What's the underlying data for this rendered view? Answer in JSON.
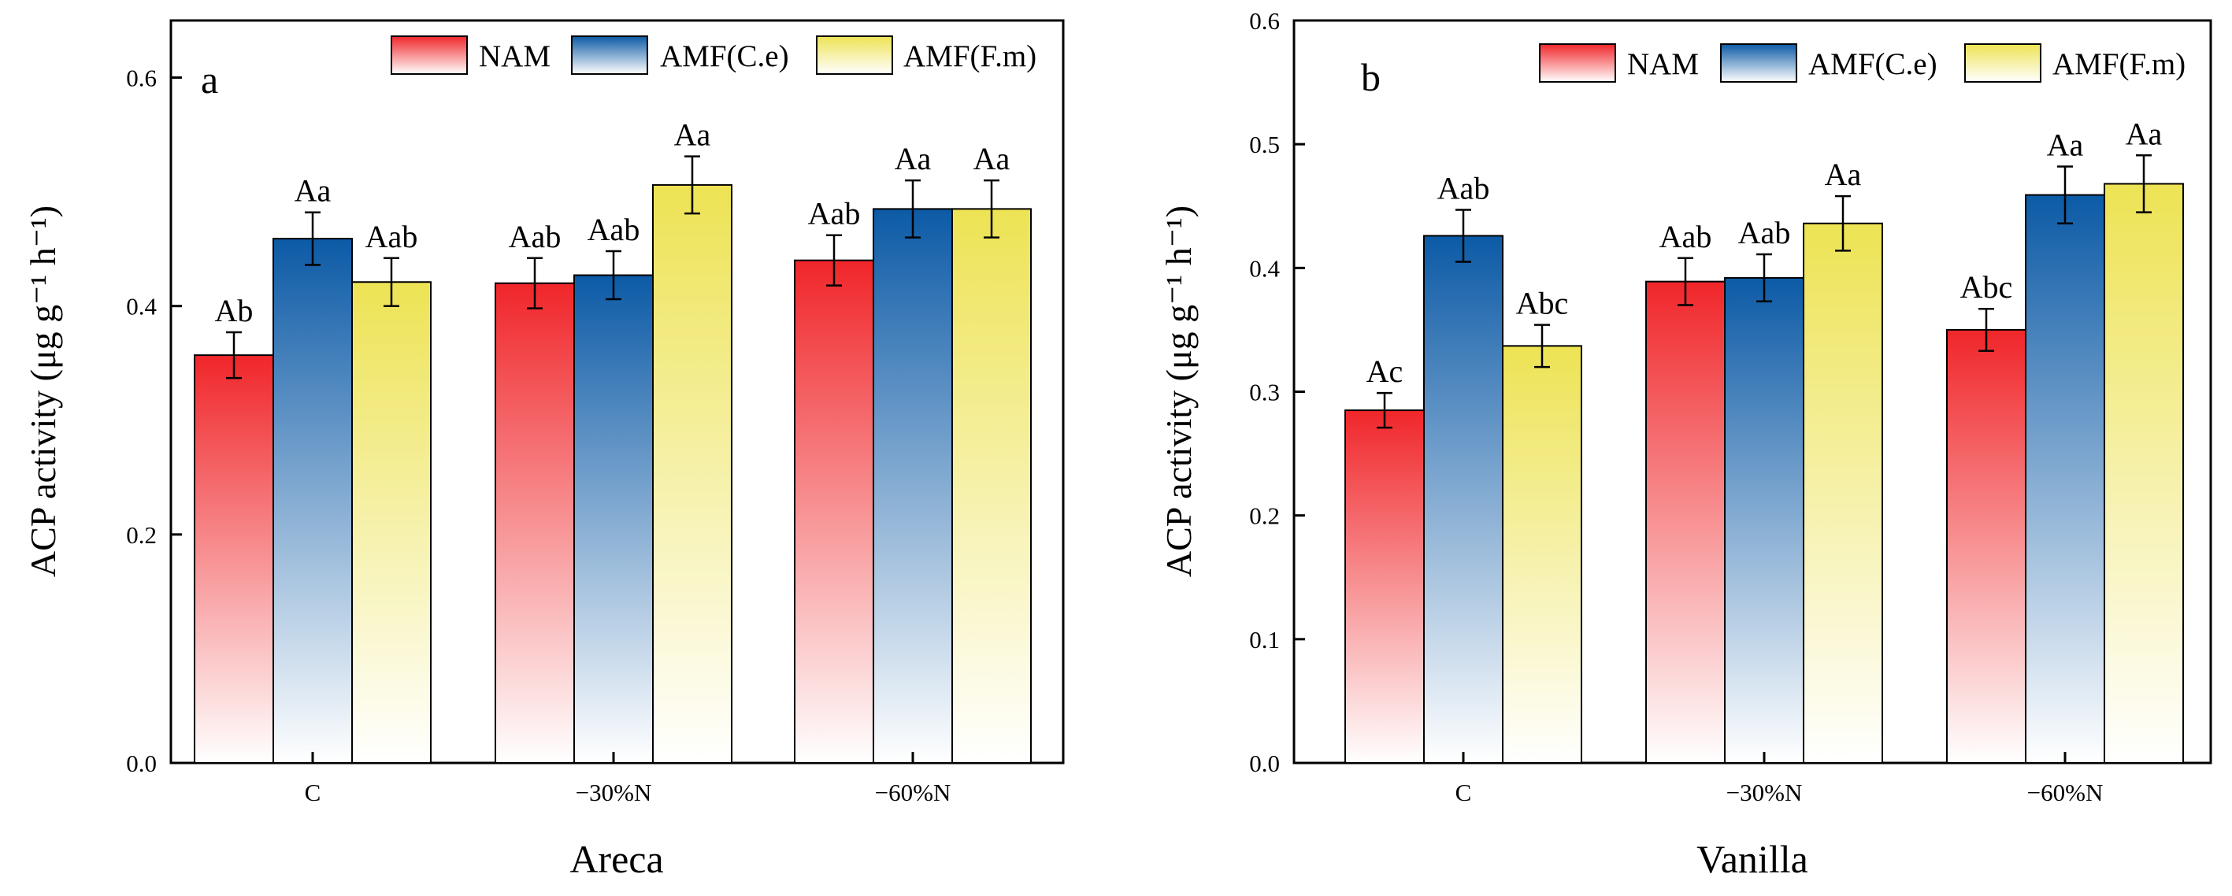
{
  "colors": {
    "NAM": "#f0262a",
    "AMF(C.e)": "#0c5aa6",
    "AMF(F.m)": "#ede354"
  },
  "legend": [
    "NAM",
    "AMF(C.e)",
    "AMF(F.m)"
  ],
  "chart_data": [
    {
      "type": "bar",
      "panel_label": "a",
      "xlabel": "Areca",
      "ylabel": "ACP activity (μg g⁻¹ h⁻¹)",
      "categories": [
        "C",
        "−30%N",
        "−60%N"
      ],
      "ylim": [
        0,
        0.65
      ],
      "yticks": [
        0.0,
        0.2,
        0.4,
        0.6
      ],
      "ytick_labels": [
        "0.0",
        "0.2",
        "0.4",
        "0.6"
      ],
      "legend_position": "top",
      "grid": false,
      "series": [
        {
          "name": "NAM",
          "values": [
            0.357,
            0.42,
            0.44
          ],
          "errors": [
            0.02,
            0.022,
            0.022
          ],
          "labels": [
            "Ab",
            "Aab",
            "Aab"
          ]
        },
        {
          "name": "AMF(C.e)",
          "values": [
            0.459,
            0.427,
            0.485
          ],
          "errors": [
            0.023,
            0.021,
            0.025
          ],
          "labels": [
            "Aa",
            "Aab",
            "Aa"
          ]
        },
        {
          "name": "AMF(F.m)",
          "values": [
            0.421,
            0.506,
            0.485
          ],
          "errors": [
            0.021,
            0.025,
            0.025
          ],
          "labels": [
            "Aab",
            "Aa",
            "Aa"
          ]
        }
      ]
    },
    {
      "type": "bar",
      "panel_label": "b",
      "xlabel": "Vanilla",
      "ylabel": "ACP activity (μg g⁻¹ h⁻¹)",
      "categories": [
        "C",
        "−30%N",
        "−60%N"
      ],
      "ylim": [
        0,
        0.6
      ],
      "yticks": [
        0.0,
        0.1,
        0.2,
        0.3,
        0.4,
        0.5,
        0.6
      ],
      "ytick_labels": [
        "0.0",
        "0.1",
        "0.2",
        "0.3",
        "0.4",
        "0.5",
        "0.6"
      ],
      "legend_position": "top",
      "grid": false,
      "series": [
        {
          "name": "NAM",
          "values": [
            0.285,
            0.389,
            0.35
          ],
          "errors": [
            0.014,
            0.019,
            0.017
          ],
          "labels": [
            "Ac",
            "Aab",
            "Abc"
          ]
        },
        {
          "name": "AMF(C.e)",
          "values": [
            0.426,
            0.392,
            0.459
          ],
          "errors": [
            0.021,
            0.019,
            0.023
          ],
          "labels": [
            "Aab",
            "Aab",
            "Aa"
          ]
        },
        {
          "name": "AMF(F.m)",
          "values": [
            0.337,
            0.436,
            0.468
          ],
          "errors": [
            0.017,
            0.022,
            0.023
          ],
          "labels": [
            "Abc",
            "Aa",
            "Aa"
          ]
        }
      ]
    }
  ]
}
